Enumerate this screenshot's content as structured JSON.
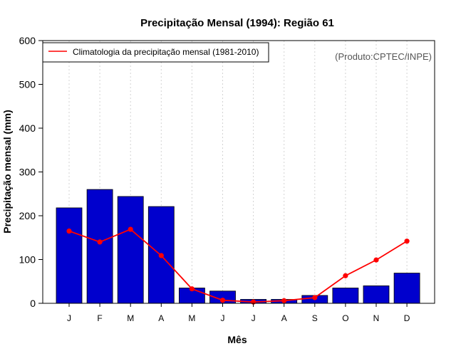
{
  "chart_data": {
    "type": "bar",
    "title": "Precipitação Mensal (1994): Região 61",
    "xlabel": "Mês",
    "ylabel": "Precipitação mensal (mm)",
    "ylim": [
      0,
      600
    ],
    "yticks": [
      0,
      100,
      200,
      300,
      400,
      500,
      600
    ],
    "categories": [
      "J",
      "F",
      "M",
      "A",
      "M",
      "J",
      "J",
      "A",
      "S",
      "O",
      "N",
      "D"
    ],
    "grid": "vertical dotted",
    "credit": "(Produto:CPTEC/INPE)",
    "legend_position": "top-left",
    "series": [
      {
        "name": "Precipitação mensal (1994)",
        "kind": "bar",
        "color": "#0000CD",
        "values": [
          218,
          260,
          244,
          221,
          35,
          28,
          9,
          9,
          18,
          35,
          40,
          69
        ]
      },
      {
        "name": "Climatologia da precipitação mensal (1981-2010)",
        "kind": "line",
        "color": "#FF0000",
        "values": [
          165,
          140,
          169,
          109,
          33,
          7,
          3,
          6,
          13,
          63,
          99,
          142
        ]
      }
    ]
  }
}
